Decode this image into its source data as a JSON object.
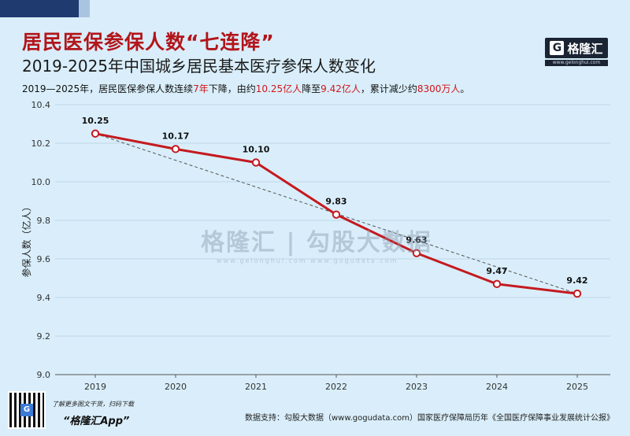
{
  "header": {
    "title": "居民医保参保人数“七连降”",
    "subtitle": "2019-2025年中国城乡居民基本医疗参保人数变化",
    "summary": {
      "p1": "2019—2025年，居民医保参保人数连续",
      "h1": "7年",
      "p2": "下降，由约",
      "h2": "10.25亿人",
      "p3": "降至",
      "h3": "9.42亿人",
      "p4": "，累计减少约",
      "h4": "8300万人",
      "p5": "。"
    },
    "highlight_color": "#d4141a"
  },
  "logo": {
    "icon": "G",
    "name": "格隆汇",
    "url": "www.gelonghui.com"
  },
  "watermark": {
    "text": "格隆汇 | 勾股大数据",
    "sub": "www.gelonghui.com   www.gogudata.com"
  },
  "footer": {
    "promo_line1": "了解更多图文干货，扫码下载",
    "promo_line2": "“格隆汇App”",
    "source": "数据支持：勾股大数据（www.gogudata.com）国家医疗保障局历年《全国医疗保障事业发展统计公报》"
  },
  "chart_data": {
    "type": "line",
    "title": "2019-2025年中国城乡居民基本医疗参保人数变化",
    "xlabel": "",
    "ylabel": "参保人数（亿人）",
    "categories": [
      "2019",
      "2020",
      "2021",
      "2022",
      "2023",
      "2024",
      "2025"
    ],
    "series": [
      {
        "values": [
          10.25,
          10.17,
          10.1,
          9.83,
          9.63,
          9.47,
          9.42
        ],
        "color": "#c41a1f"
      }
    ],
    "data_labels": [
      "10.25",
      "10.17",
      "10.10",
      "9.83",
      "9.63",
      "9.47",
      "9.42"
    ],
    "trendline": {
      "style": "dashed",
      "from": 10.25,
      "to": 9.42
    },
    "ylim": [
      9.0,
      10.4
    ],
    "yticks": [
      "9.0",
      "9.2",
      "9.4",
      "9.6",
      "9.8",
      "10.0",
      "10.2",
      "10.4"
    ],
    "grid": true,
    "legend": "none"
  }
}
